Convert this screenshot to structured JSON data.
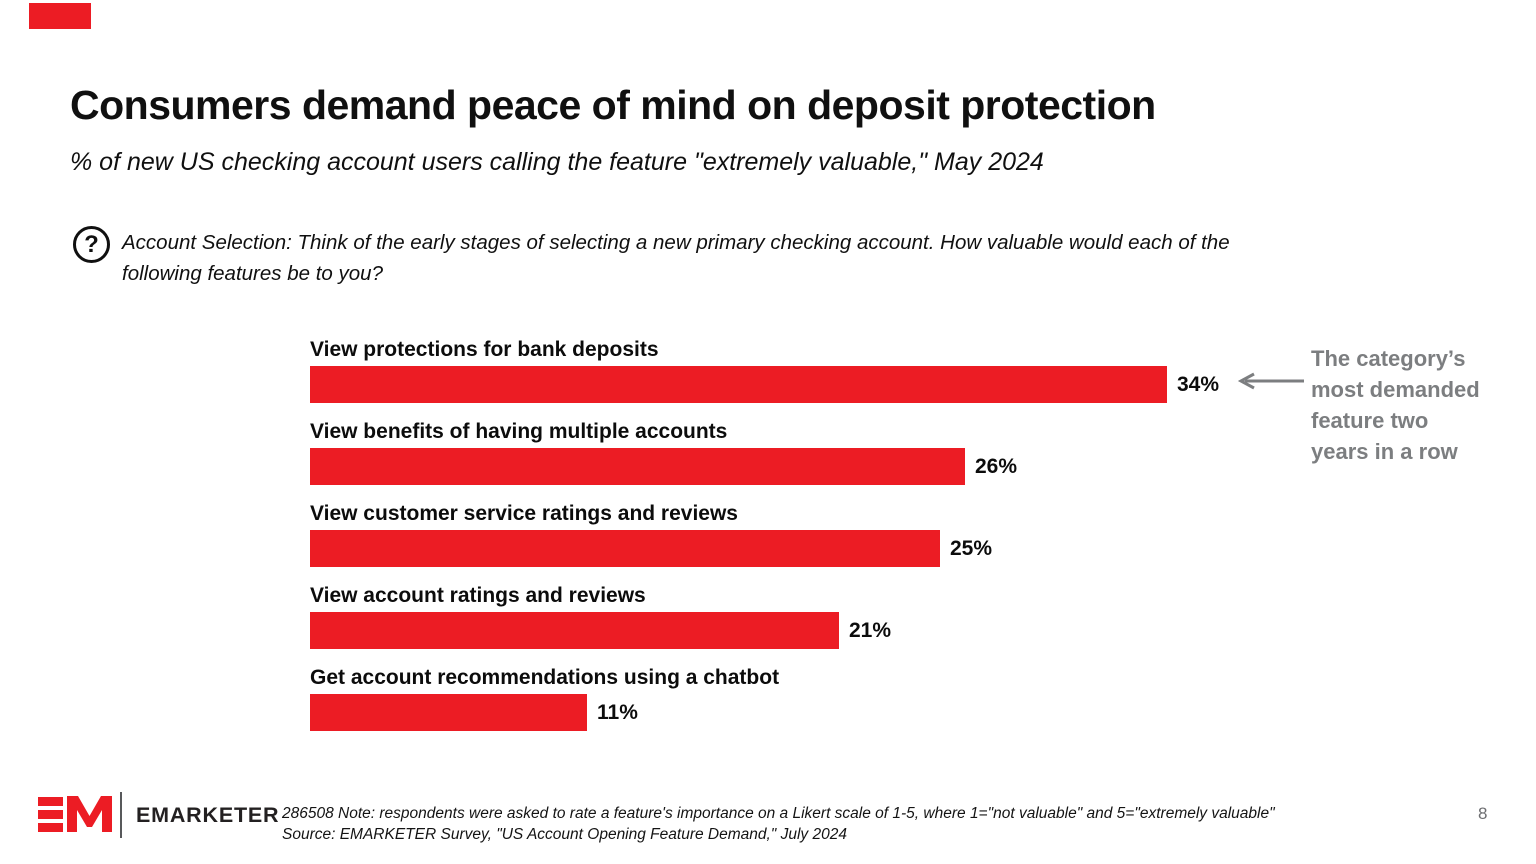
{
  "page": {
    "accent_color": "#EC1C24",
    "page_number": "8"
  },
  "header": {
    "title": "Consumers demand peace of mind on deposit protection",
    "subtitle": "% of new US checking account users calling the feature \"extremely valuable,\" May 2024"
  },
  "question": {
    "icon": "question-mark-icon",
    "text": "Account Selection: Think of the early stages of selecting a new primary checking account. How valuable would each of the\nfollowing features be to you?"
  },
  "chart_data": {
    "type": "bar",
    "orientation": "horizontal",
    "title": "% of new US checking account users calling the feature \"extremely valuable,\" May 2024",
    "categories": [
      "View protections for bank deposits",
      "View benefits of having multiple accounts",
      "View customer service ratings and reviews",
      "View account ratings and reviews",
      "Get account recommendations using a chatbot"
    ],
    "values": [
      34,
      26,
      25,
      21,
      11
    ],
    "value_suffix": "%",
    "xlim": [
      0,
      40
    ],
    "axis_visible": false,
    "grid": false,
    "bar_color": "#EC1C24",
    "annotation": {
      "text": "The category’s\nmost demanded\nfeature two\nyears in a row",
      "arrow": "left-arrow",
      "color": "#7c7e80",
      "points_to": "34%"
    }
  },
  "footer": {
    "logo": {
      "mark": "EM",
      "wordmark": "EMARKETER"
    },
    "note": "286508 Note: respondents were asked to rate a feature's importance on a Likert scale of 1-5, where 1=\"not valuable\" and 5=\"extremely valuable\"",
    "source": "Source: EMARKETER Survey, \"US Account Opening Feature Demand,\" July 2024"
  }
}
